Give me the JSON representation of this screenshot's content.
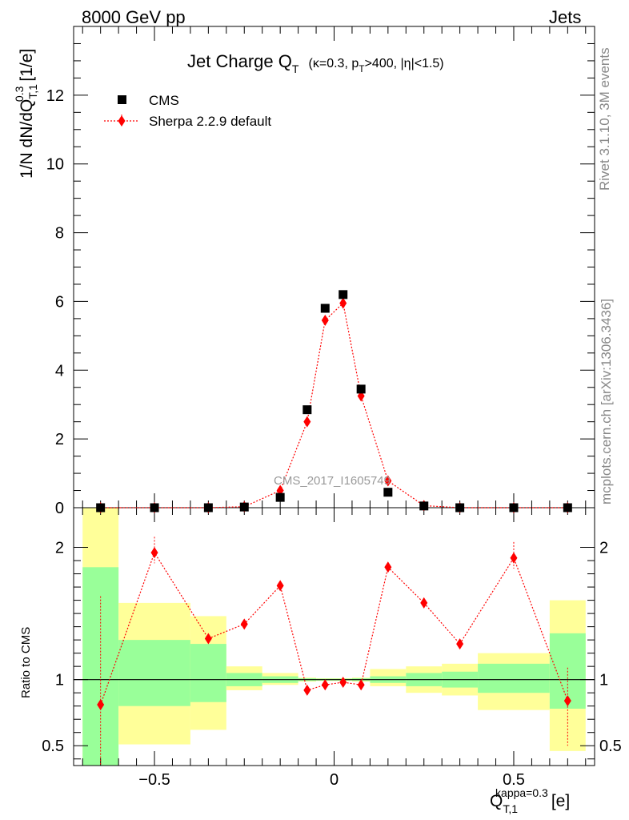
{
  "header": {
    "left": "8000 GeV pp",
    "right": "Jets"
  },
  "side_labels": {
    "rivet": "Rivet 3.1.10,  3M events",
    "mcplots": "mcplots.cern.ch [arXiv:1306.3436]"
  },
  "watermark": "CMS_2017_I1605749",
  "title": {
    "main": "Jet Charge Q",
    "main_sub": "T",
    "cuts": "(κ=0.3, p",
    "cuts_sub": "T",
    "cuts_rest": ">400, |η|<1.5)"
  },
  "axis_labels": {
    "y_main": "1/N dN/dQ",
    "y_main_sup": "0.3",
    "y_main_sub": "T,1",
    "y_main_unit": "[1/e]",
    "y_ratio": "Ratio to CMS",
    "x": "Q",
    "x_sup": "kappa=0.3",
    "x_sub": "T,1",
    "x_unit": "[e]"
  },
  "legend": {
    "position": "top-left",
    "entries": [
      {
        "label": "CMS",
        "marker": "square",
        "color": "#000000"
      },
      {
        "label": "Sherpa 2.2.9 default",
        "marker": "diamond",
        "color": "#ff0000"
      }
    ]
  },
  "chart_data": [
    {
      "type": "scatter",
      "panel": "main",
      "xlim": [
        -0.725,
        0.725
      ],
      "ylim": [
        0,
        14
      ],
      "yticks": [
        "0",
        "2",
        "4",
        "6",
        "8",
        "10",
        "12"
      ],
      "series": [
        {
          "name": "CMS",
          "color": "#000000",
          "x": [
            -0.65,
            -0.5,
            -0.35,
            -0.25,
            -0.15,
            -0.075,
            -0.025,
            0.025,
            0.075,
            0.15,
            0.25,
            0.35,
            0.5,
            0.65
          ],
          "y": [
            0.0,
            0.0,
            0.0,
            0.02,
            0.3,
            2.85,
            5.8,
            6.2,
            3.45,
            0.45,
            0.05,
            0.0,
            0.0,
            0.0
          ]
        },
        {
          "name": "Sherpa 2.2.9 default",
          "color": "#ff0000",
          "x": [
            -0.65,
            -0.5,
            -0.35,
            -0.25,
            -0.15,
            -0.075,
            -0.025,
            0.025,
            0.075,
            0.15,
            0.25,
            0.35,
            0.5,
            0.65
          ],
          "y": [
            0.0,
            0.0,
            0.0,
            0.03,
            0.5,
            2.5,
            5.45,
            5.95,
            3.25,
            0.78,
            0.06,
            0.0,
            0.0,
            0.0
          ]
        }
      ]
    },
    {
      "type": "line",
      "panel": "ratio",
      "xlim": [
        -0.725,
        0.725
      ],
      "ylim": [
        0.35,
        2.3
      ],
      "yticks": [
        "0.5",
        "1",
        "2"
      ],
      "xticks": [
        "−0.5",
        "0",
        "0.5"
      ],
      "bin_edges": [
        -0.7,
        -0.6,
        -0.4,
        -0.3,
        -0.2,
        -0.1,
        -0.05,
        0.0,
        0.05,
        0.1,
        0.2,
        0.3,
        0.4,
        0.6,
        0.7
      ],
      "band_1sigma": [
        [
          0.35,
          1.85
        ],
        [
          0.8,
          1.3
        ],
        [
          0.83,
          1.27
        ],
        [
          0.95,
          1.05
        ],
        [
          0.975,
          1.025
        ],
        [
          0.99,
          1.01
        ],
        [
          0.993,
          1.007
        ],
        [
          0.993,
          1.007
        ],
        [
          0.99,
          1.01
        ],
        [
          0.975,
          1.025
        ],
        [
          0.95,
          1.05
        ],
        [
          0.94,
          1.06
        ],
        [
          0.9,
          1.12
        ],
        [
          0.78,
          1.35
        ]
      ],
      "band_2sigma": [
        [
          0.35,
          2.3
        ],
        [
          0.51,
          1.58
        ],
        [
          0.62,
          1.48
        ],
        [
          0.92,
          1.1
        ],
        [
          0.96,
          1.05
        ],
        [
          0.985,
          1.015
        ],
        [
          0.99,
          1.01
        ],
        [
          0.99,
          1.01
        ],
        [
          0.985,
          1.015
        ],
        [
          0.95,
          1.08
        ],
        [
          0.9,
          1.1
        ],
        [
          0.88,
          1.12
        ],
        [
          0.77,
          1.2
        ],
        [
          0.46,
          1.6
        ]
      ],
      "band_colors": {
        "one_sigma": "#99ff99",
        "two_sigma": "#ffff99"
      },
      "series": [
        {
          "name": "Sherpa 2.2.9 default",
          "color": "#ff0000",
          "x": [
            -0.65,
            -0.5,
            -0.35,
            -0.25,
            -0.15,
            -0.075,
            -0.025,
            0.025,
            0.075,
            0.15,
            0.25,
            0.35,
            0.5,
            0.65
          ],
          "y": [
            0.81,
            1.96,
            1.31,
            1.42,
            1.71,
            0.92,
            0.96,
            0.98,
            0.96,
            1.85,
            1.58,
            1.27,
            1.92,
            0.84
          ],
          "err_low": [
            0.35,
            1.88,
            1.29,
            1.4,
            1.69,
            0.91,
            0.95,
            0.975,
            0.955,
            1.83,
            1.56,
            1.25,
            1.84,
            0.5
          ],
          "err_high": [
            1.63,
            2.08,
            1.33,
            1.44,
            1.73,
            0.93,
            0.97,
            0.985,
            0.965,
            1.87,
            1.6,
            1.29,
            2.04,
            1.09
          ]
        }
      ],
      "reference_line": 1
    }
  ]
}
